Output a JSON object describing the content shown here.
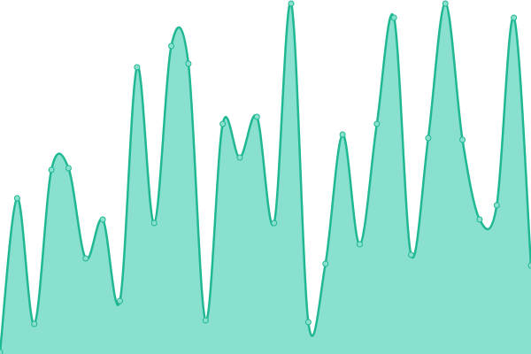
{
  "chart_data": {
    "type": "area",
    "x": [
      0,
      1,
      2,
      3,
      4,
      5,
      6,
      7,
      8,
      9,
      10,
      11,
      12,
      13,
      14,
      15,
      16,
      17,
      18,
      19,
      20,
      21,
      22,
      23,
      24,
      25,
      26,
      27,
      28,
      29,
      30,
      31
    ],
    "series": [
      {
        "color": "#1fb892",
        "fill": "#89e0cf",
        "values": [
          0.5,
          44,
          8.5,
          52,
          52.5,
          27,
          38,
          15,
          81,
          37,
          87,
          82,
          9.5,
          65,
          55.5,
          67,
          37,
          99,
          9,
          25.5,
          62,
          31,
          65,
          95,
          28,
          61,
          99,
          60.5,
          38,
          42,
          95,
          25
        ]
      }
    ],
    "xlim": [
      0,
      31
    ],
    "ylim": [
      0,
      100
    ],
    "markers": true
  }
}
